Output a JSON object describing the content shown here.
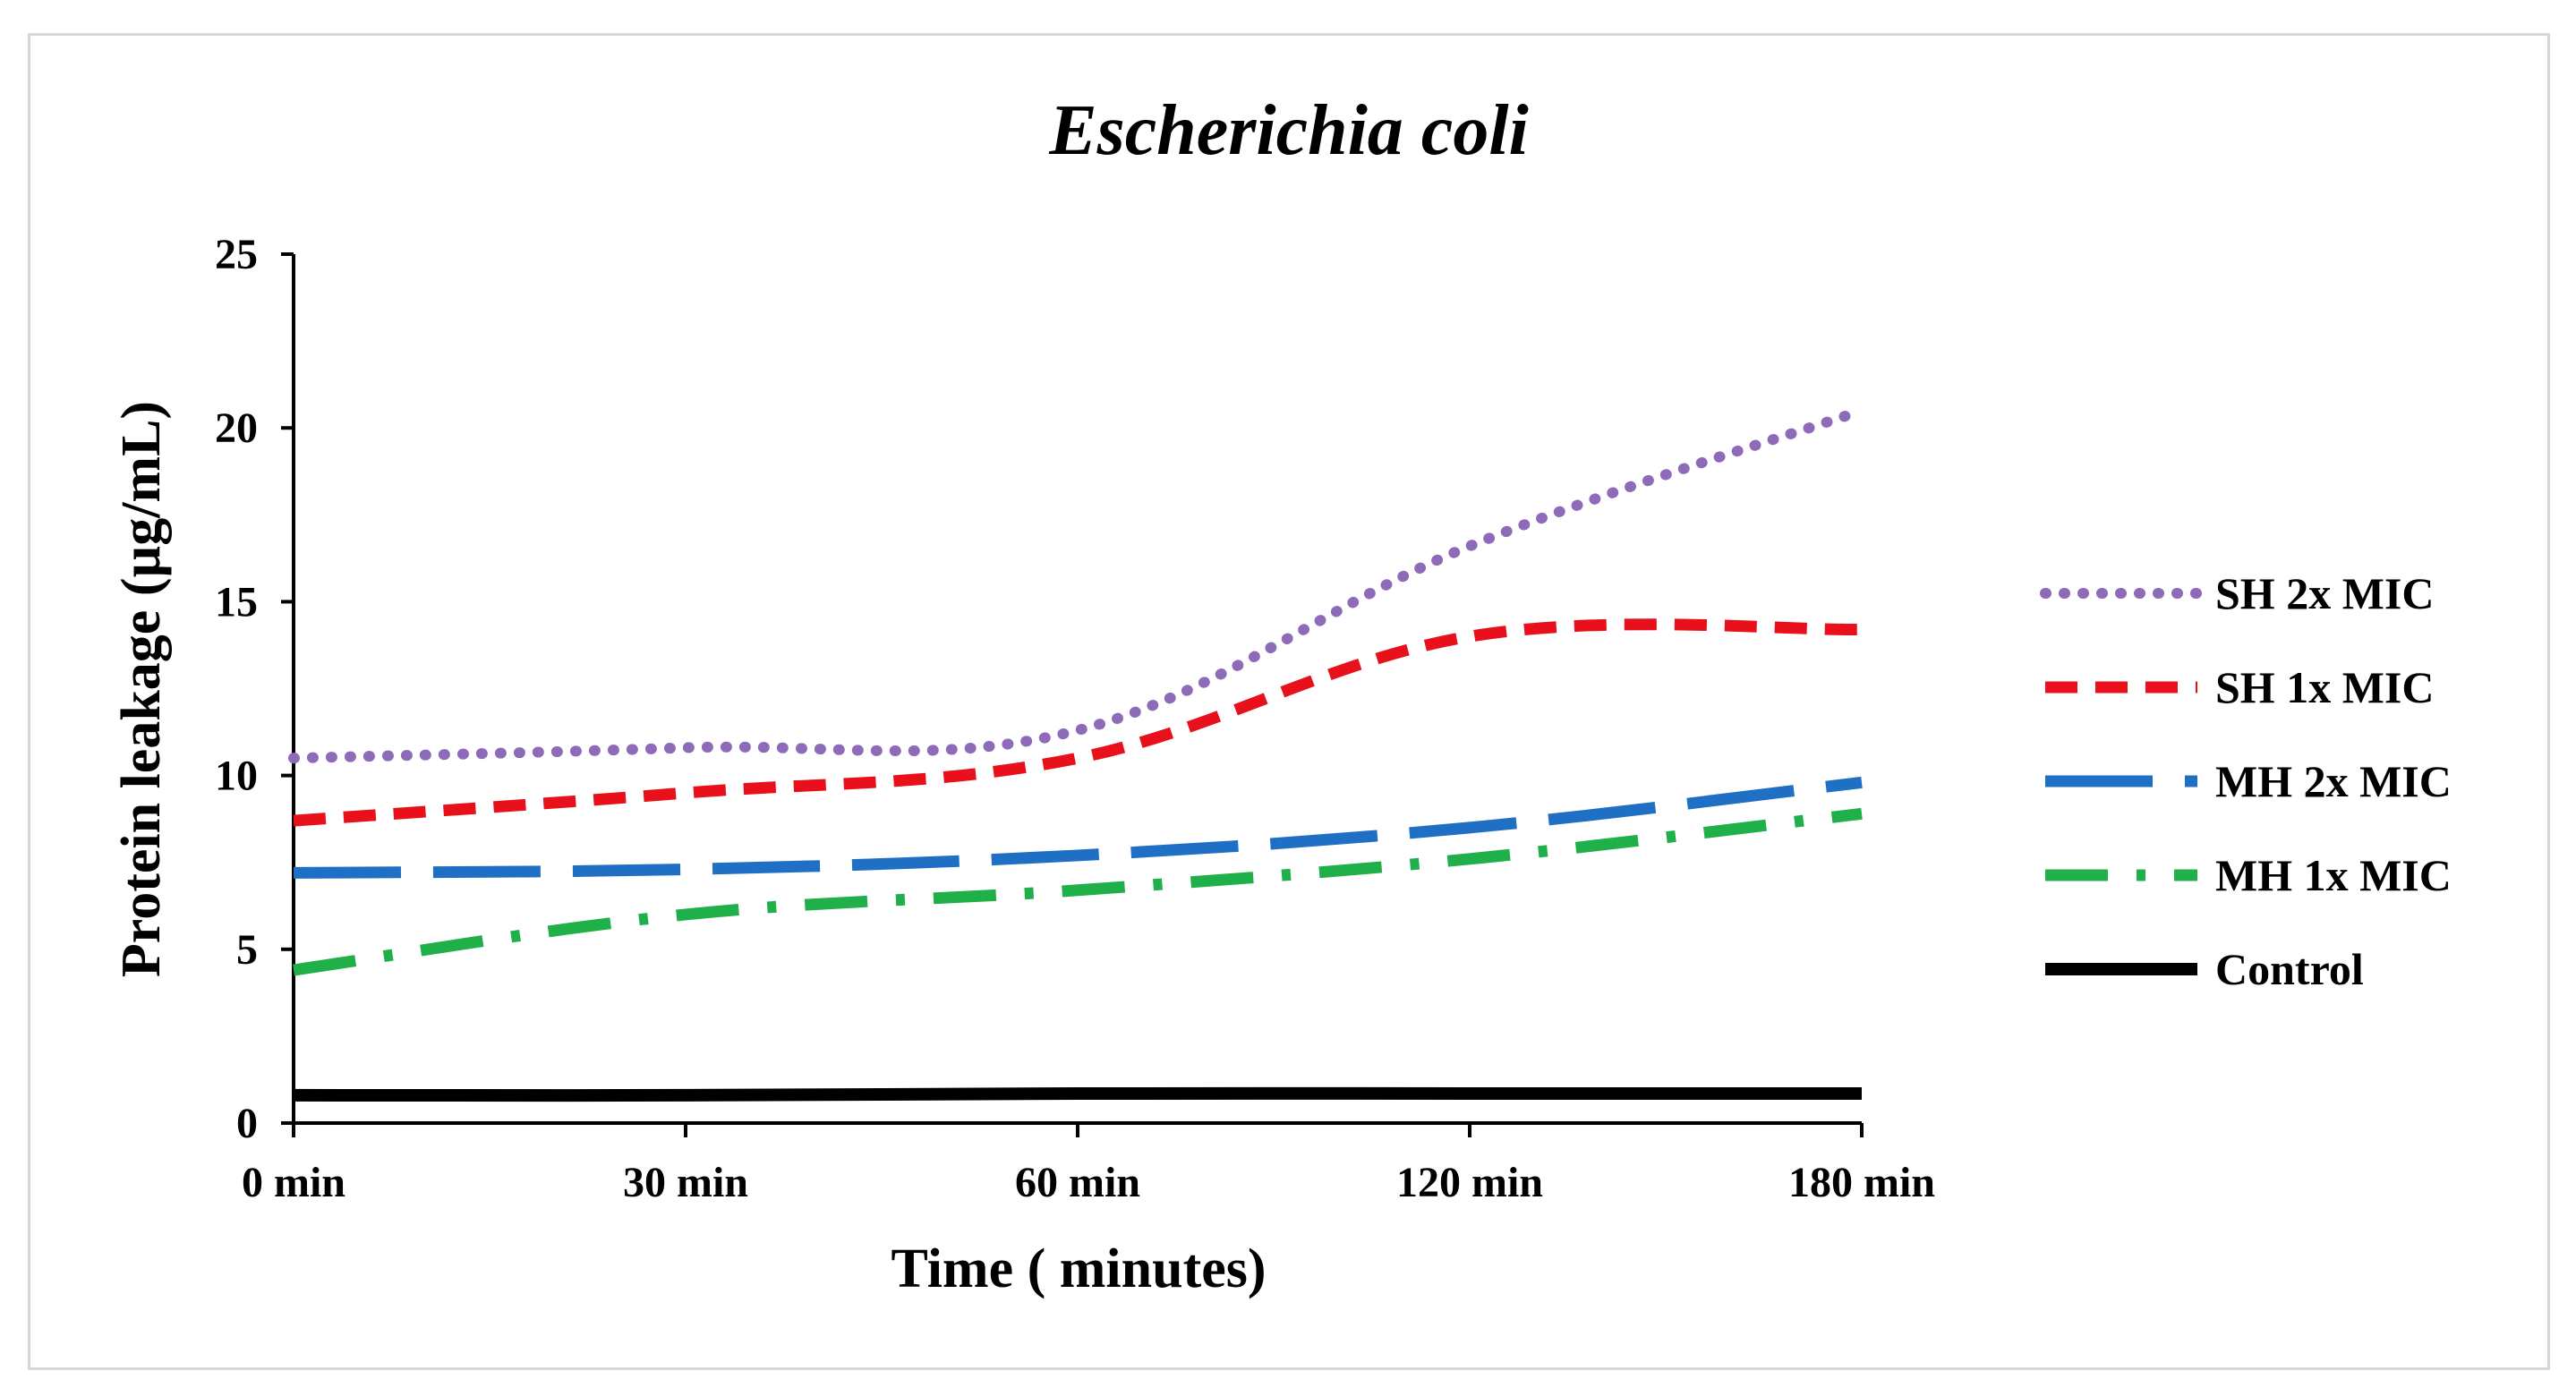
{
  "chart_data": {
    "type": "line",
    "title": "Escherichia coli",
    "xlabel": "Time ( minutes)",
    "ylabel": "Protein leakage (µg/mL)",
    "categories": [
      "0 min",
      "30 min",
      "60 min",
      "120 min",
      "180 min"
    ],
    "ylim": [
      0,
      25
    ],
    "yticks": [
      0,
      5,
      10,
      15,
      20,
      25
    ],
    "grid": false,
    "legend_position": "right",
    "series": [
      {
        "name": "SH 2x MIC",
        "values": [
          10.5,
          10.8,
          11.3,
          16.6,
          20.5
        ],
        "color": "#8e6bb8",
        "style": "dotted"
      },
      {
        "name": "SH 1x MIC",
        "values": [
          8.7,
          9.5,
          10.5,
          14.0,
          14.2
        ],
        "color": "#e8101a",
        "style": "dashed"
      },
      {
        "name": "MH 2x MIC",
        "values": [
          7.2,
          7.3,
          7.7,
          8.5,
          9.8
        ],
        "color": "#1f6fc4",
        "style": "long-dash"
      },
      {
        "name": "MH 1x MIC",
        "values": [
          4.4,
          6.0,
          6.7,
          7.6,
          8.9
        ],
        "color": "#1fb04a",
        "style": "dash-dot"
      },
      {
        "name": "Control",
        "values": [
          0.8,
          0.8,
          0.85,
          0.85,
          0.85
        ],
        "color": "#000000",
        "style": "solid"
      }
    ]
  }
}
